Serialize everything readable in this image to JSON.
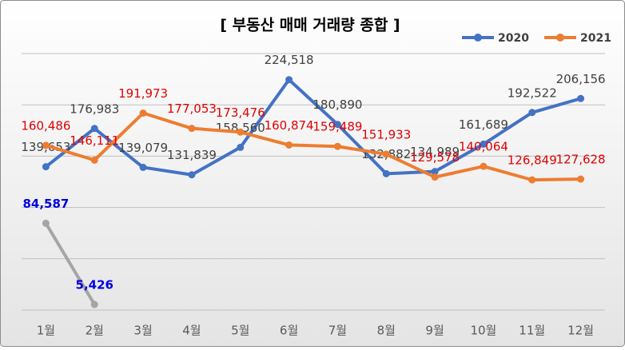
{
  "chart_data": {
    "type": "line",
    "title": "[ 부동산 매매 거래량 종합 ]",
    "categories": [
      "1월",
      "2월",
      "3월",
      "4월",
      "5월",
      "6월",
      "7월",
      "8월",
      "9월",
      "10월",
      "11월",
      "12월"
    ],
    "series": [
      {
        "name": "2020",
        "color": "#4472c4",
        "label_color": "#404040",
        "values": [
          139653,
          176983,
          139079,
          131839,
          158560,
          224518,
          180890,
          132882,
          134989,
          161689,
          192522,
          206156
        ],
        "value_labels": [
          "139,653",
          "176,983",
          "139,079",
          "131,839",
          "158,560",
          "224,518",
          "180,890",
          "132,882",
          "134,989",
          "161,689",
          "192,522",
          "206,156"
        ]
      },
      {
        "name": "2021",
        "color": "#ed7d31",
        "label_color": "#e00000",
        "values": [
          160486,
          146111,
          191973,
          177053,
          173476,
          160874,
          159489,
          151933,
          129578,
          140064,
          126849,
          127628
        ],
        "value_labels": [
          "160,486",
          "146,111",
          "191,973",
          "177,053",
          "173,476",
          "160,874",
          "159,489",
          "151,933",
          "129,578",
          "140,064",
          "126,849",
          "127,628"
        ]
      },
      {
        "color": "#a5a5a5",
        "label_color": "#0000e0",
        "label_bold": true,
        "values": [
          84587,
          5426,
          null,
          null,
          null,
          null,
          null,
          null,
          null,
          null,
          null,
          null
        ],
        "value_labels": [
          "84,587",
          "5,426",
          null,
          null,
          null,
          null,
          null,
          null,
          null,
          null,
          null,
          null
        ]
      }
    ],
    "ylim": [
      0,
      250000
    ],
    "yticks": [
      0,
      50000,
      100000,
      150000,
      200000,
      250000
    ],
    "ytick_labels": false,
    "grid": true,
    "legend": "top-right"
  }
}
